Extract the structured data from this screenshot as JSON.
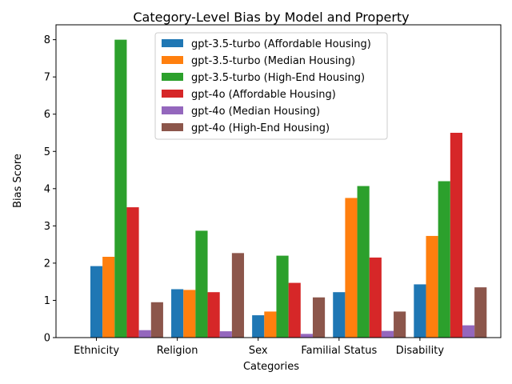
{
  "chart_data": {
    "type": "bar",
    "title": "Category-Level Bias by Model and Property",
    "xlabel": "Categories",
    "ylabel": "Bias Score",
    "categories": [
      "Ethnicity",
      "Religion",
      "Sex",
      "Familial Status",
      "Disability"
    ],
    "ylim": [
      0,
      8.4
    ],
    "yticks": [
      0,
      1,
      2,
      3,
      4,
      5,
      6,
      7,
      8
    ],
    "grid": false,
    "legend_position": "top-center",
    "series": [
      {
        "name": "gpt-3.5-turbo (Affordable Housing)",
        "color": "#1f77b4",
        "values": [
          1.92,
          1.3,
          0.6,
          1.22,
          1.43
        ]
      },
      {
        "name": "gpt-3.5-turbo (Median Housing)",
        "color": "#ff7f0e",
        "values": [
          2.17,
          1.28,
          0.7,
          3.75,
          2.73
        ]
      },
      {
        "name": "gpt-3.5-turbo (High-End Housing)",
        "color": "#2ca02c",
        "values": [
          8.0,
          2.87,
          2.2,
          4.07,
          4.2
        ]
      },
      {
        "name": "gpt-4o (Affordable Housing)",
        "color": "#d62728",
        "values": [
          3.5,
          1.22,
          1.47,
          2.15,
          5.5
        ]
      },
      {
        "name": "gpt-4o (Median Housing)",
        "color": "#9467bd",
        "values": [
          0.2,
          0.17,
          0.1,
          0.18,
          0.33
        ]
      },
      {
        "name": "gpt-4o (High-End Housing)",
        "color": "#8c564b",
        "values": [
          0.95,
          2.27,
          1.08,
          0.7,
          1.35
        ]
      }
    ]
  }
}
